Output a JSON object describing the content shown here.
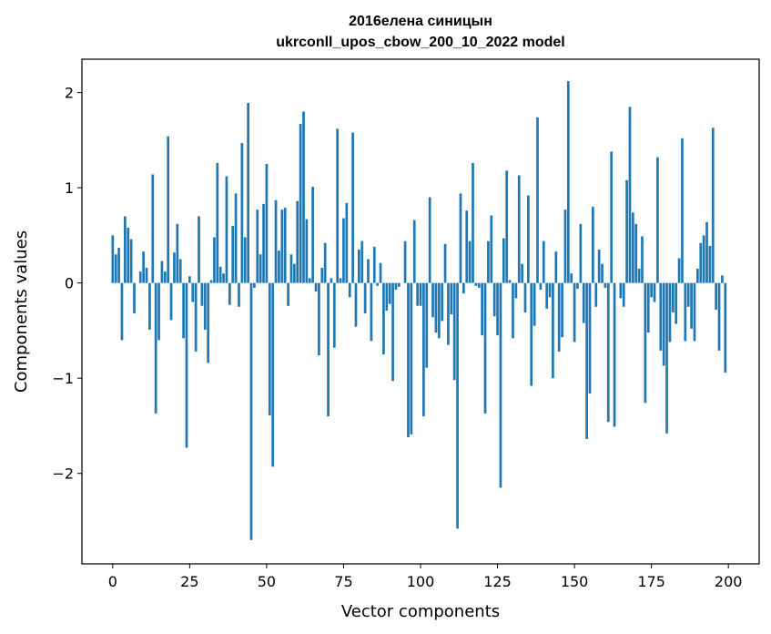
{
  "chart_data": {
    "type": "bar",
    "title_line1": "2016елена синицын",
    "title_line2": "ukrconll_upos_cbow_200_10_2022 model",
    "xlabel": "Vector components",
    "ylabel": "Components values",
    "xlim": [
      -10,
      210
    ],
    "ylim": [
      -2.95,
      2.35
    ],
    "xticks": [
      0,
      25,
      50,
      75,
      100,
      125,
      150,
      175,
      200
    ],
    "yticks": [
      -2,
      -1,
      0,
      1,
      2
    ],
    "ytick_labels": [
      "−2",
      "−1",
      "0",
      "1",
      "2"
    ],
    "bar_color": "#1f77b4",
    "grid": false,
    "values": [
      0.5,
      0.3,
      0.37,
      -0.6,
      0.7,
      0.58,
      0.46,
      -0.32,
      0.0,
      0.12,
      0.33,
      0.16,
      -0.49,
      1.14,
      -1.37,
      -0.6,
      0.23,
      0.12,
      1.54,
      -0.39,
      0.32,
      0.62,
      0.25,
      -0.58,
      -1.73,
      0.07,
      -0.2,
      -0.72,
      0.7,
      -0.24,
      -0.49,
      -0.84,
      0.03,
      0.48,
      1.26,
      0.17,
      0.1,
      1.12,
      -0.23,
      0.6,
      0.94,
      -0.25,
      1.47,
      0.48,
      1.89,
      -2.7,
      -0.05,
      0.77,
      0.3,
      0.83,
      1.25,
      -1.39,
      -1.93,
      0.87,
      0.34,
      0.77,
      0.79,
      -0.24,
      0.3,
      0.2,
      0.86,
      1.67,
      1.8,
      0.67,
      0.05,
      1.01,
      -0.09,
      -0.76,
      0.16,
      0.42,
      -1.4,
      0.05,
      -0.68,
      1.62,
      0.05,
      0.68,
      0.84,
      -0.15,
      1.58,
      -0.46,
      0.35,
      0.44,
      -0.32,
      0.25,
      -0.61,
      0.38,
      -0.03,
      0.21,
      -0.75,
      -0.29,
      -0.22,
      -1.03,
      -0.07,
      -0.04,
      0.0,
      0.44,
      -1.62,
      -1.59,
      0.66,
      -0.24,
      -0.24,
      -1.4,
      -0.89,
      0.9,
      -0.36,
      -0.52,
      -0.58,
      -0.4,
      0.41,
      -0.65,
      -0.33,
      -1.02,
      -2.58,
      0.94,
      -0.11,
      0.76,
      0.44,
      1.26,
      -0.03,
      -0.05,
      -0.55,
      -1.37,
      0.44,
      0.71,
      -0.35,
      -0.55,
      -2.15,
      0.47,
      1.18,
      0.03,
      -0.58,
      -0.16,
      1.13,
      0.2,
      -0.31,
      0.92,
      -1.08,
      -0.45,
      1.74,
      -0.07,
      0.44,
      -0.27,
      -0.15,
      -1.0,
      0.33,
      -0.72,
      -0.57,
      0.77,
      2.12,
      0.1,
      -0.62,
      -0.06,
      0.62,
      -0.42,
      -1.64,
      -1.16,
      0.8,
      -0.25,
      0.35,
      0.2,
      -0.05,
      -1.46,
      1.38,
      -1.51,
      0.0,
      -0.16,
      -0.25,
      1.08,
      1.85,
      0.74,
      0.62,
      0.15,
      0.49,
      -1.26,
      -0.52,
      -0.15,
      -0.2,
      1.32,
      -0.71,
      -0.87,
      -1.58,
      -0.62,
      -0.31,
      -0.43,
      0.26,
      1.52,
      -0.61,
      -0.25,
      -0.48,
      -0.61,
      0.15,
      0.42,
      0.5,
      0.64,
      0.39,
      1.63,
      -0.28,
      -0.71,
      0.08,
      -0.94
    ]
  }
}
